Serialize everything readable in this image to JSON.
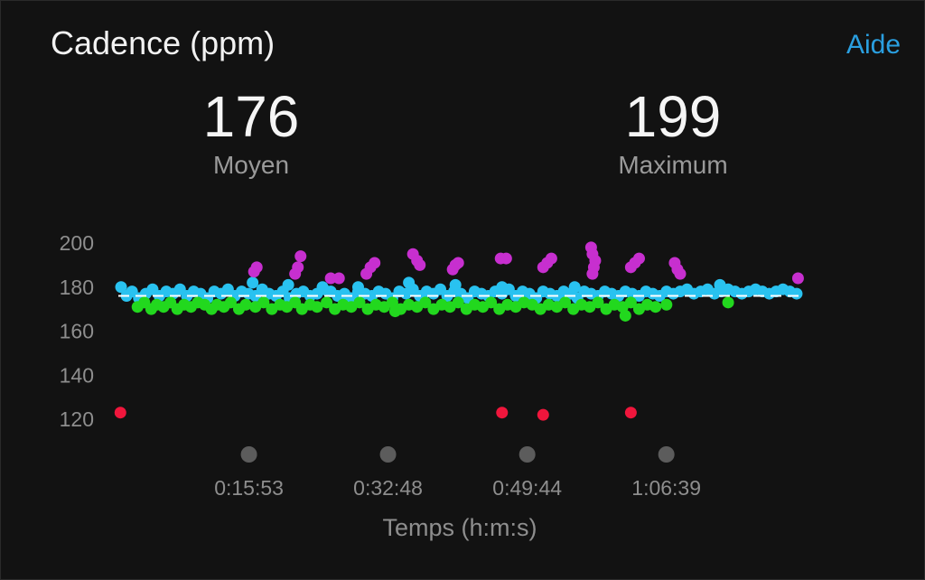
{
  "header": {
    "title": "Cadence (ppm)",
    "help_label": "Aide"
  },
  "stats": [
    {
      "value": "176",
      "label": "Moyen"
    },
    {
      "value": "199",
      "label": "Maximum"
    }
  ],
  "colors": {
    "background": "#121212",
    "accent_link": "#2a9fe0",
    "zone_blue": "#29c2f0",
    "zone_green": "#22d81e",
    "zone_purple": "#c72fcf",
    "zone_red": "#f0163c",
    "marker_gray": "#5c5c5c"
  },
  "chart_data": {
    "type": "scatter",
    "title": "Cadence (ppm)",
    "xlabel": "Temps (h:m:s)",
    "ylabel": "",
    "ylim": [
      120,
      200
    ],
    "xlim": [
      0,
      4990
    ],
    "yticks": [
      200,
      180,
      160,
      140,
      120
    ],
    "xticks": [
      {
        "value": 953,
        "label": "0:15:53"
      },
      {
        "value": 1968,
        "label": "0:32:48"
      },
      {
        "value": 2984,
        "label": "0:49:44"
      },
      {
        "value": 3999,
        "label": "1:06:39"
      }
    ],
    "average_line": 176,
    "grid": false,
    "legend": "none",
    "series": [
      {
        "color": "#29c2f0",
        "points": [
          [
            20,
            180
          ],
          [
            60,
            176
          ],
          [
            100,
            178
          ],
          [
            150,
            175
          ],
          [
            200,
            177
          ],
          [
            250,
            179
          ],
          [
            300,
            176
          ],
          [
            350,
            178
          ],
          [
            400,
            177
          ],
          [
            450,
            179
          ],
          [
            500,
            176
          ],
          [
            550,
            178
          ],
          [
            600,
            177
          ],
          [
            650,
            175
          ],
          [
            700,
            178
          ],
          [
            750,
            177
          ],
          [
            800,
            179
          ],
          [
            850,
            176
          ],
          [
            900,
            178
          ],
          [
            950,
            177
          ],
          [
            1000,
            176
          ],
          [
            1050,
            179
          ],
          [
            1100,
            177
          ],
          [
            1150,
            176
          ],
          [
            1200,
            178
          ],
          [
            1250,
            175
          ],
          [
            1300,
            177
          ],
          [
            1350,
            178
          ],
          [
            1400,
            176
          ],
          [
            1450,
            177
          ],
          [
            1500,
            179
          ],
          [
            1550,
            178
          ],
          [
            1600,
            176
          ],
          [
            1650,
            177
          ],
          [
            1700,
            175
          ],
          [
            1750,
            178
          ],
          [
            1800,
            177
          ],
          [
            1850,
            176
          ],
          [
            1900,
            178
          ],
          [
            1950,
            177
          ],
          [
            2000,
            175
          ],
          [
            2050,
            178
          ],
          [
            2100,
            177
          ],
          [
            2150,
            179
          ],
          [
            2200,
            176
          ],
          [
            2250,
            178
          ],
          [
            2300,
            177
          ],
          [
            2350,
            179
          ],
          [
            2400,
            176
          ],
          [
            2450,
            178
          ],
          [
            2500,
            177
          ],
          [
            2550,
            175
          ],
          [
            2600,
            178
          ],
          [
            2650,
            177
          ],
          [
            2700,
            176
          ],
          [
            2750,
            178
          ],
          [
            2800,
            177
          ],
          [
            2850,
            179
          ],
          [
            2900,
            176
          ],
          [
            2950,
            178
          ],
          [
            3000,
            177
          ],
          [
            3050,
            175
          ],
          [
            3100,
            178
          ],
          [
            3150,
            177
          ],
          [
            3200,
            176
          ],
          [
            3250,
            178
          ],
          [
            3300,
            177
          ],
          [
            3350,
            175
          ],
          [
            3400,
            178
          ],
          [
            3450,
            177
          ],
          [
            3500,
            176
          ],
          [
            3550,
            178
          ],
          [
            3600,
            177
          ],
          [
            3650,
            176
          ],
          [
            3700,
            178
          ],
          [
            3750,
            177
          ],
          [
            3800,
            176
          ],
          [
            3850,
            178
          ],
          [
            3900,
            177
          ],
          [
            3950,
            176
          ],
          [
            4000,
            178
          ],
          [
            4050,
            177
          ],
          [
            4100,
            178
          ],
          [
            4150,
            179
          ],
          [
            4200,
            177
          ],
          [
            4250,
            178
          ],
          [
            4300,
            179
          ],
          [
            4350,
            177
          ],
          [
            4400,
            178
          ],
          [
            4450,
            179
          ],
          [
            4500,
            178
          ],
          [
            4550,
            177
          ],
          [
            4600,
            178
          ],
          [
            4650,
            179
          ],
          [
            4700,
            178
          ],
          [
            4750,
            177
          ],
          [
            4800,
            178
          ],
          [
            4850,
            179
          ],
          [
            4900,
            178
          ],
          [
            4950,
            177
          ],
          [
            980,
            182
          ],
          [
            1240,
            181
          ],
          [
            1490,
            180
          ],
          [
            1750,
            180
          ],
          [
            2120,
            182
          ],
          [
            2460,
            181
          ],
          [
            2800,
            180
          ],
          [
            3330,
            180
          ],
          [
            4390,
            181
          ]
        ]
      },
      {
        "color": "#22d81e",
        "points": [
          [
            140,
            171
          ],
          [
            190,
            173
          ],
          [
            240,
            170
          ],
          [
            280,
            172
          ],
          [
            330,
            171
          ],
          [
            380,
            173
          ],
          [
            430,
            170
          ],
          [
            480,
            172
          ],
          [
            530,
            171
          ],
          [
            580,
            173
          ],
          [
            630,
            172
          ],
          [
            680,
            170
          ],
          [
            720,
            172
          ],
          [
            770,
            171
          ],
          [
            820,
            173
          ],
          [
            880,
            170
          ],
          [
            930,
            172
          ],
          [
            1000,
            171
          ],
          [
            1060,
            173
          ],
          [
            1120,
            170
          ],
          [
            1180,
            172
          ],
          [
            1230,
            171
          ],
          [
            1290,
            173
          ],
          [
            1340,
            170
          ],
          [
            1400,
            172
          ],
          [
            1450,
            171
          ],
          [
            1520,
            173
          ],
          [
            1580,
            170
          ],
          [
            1640,
            172
          ],
          [
            1700,
            171
          ],
          [
            1760,
            173
          ],
          [
            1820,
            170
          ],
          [
            1880,
            172
          ],
          [
            1940,
            171
          ],
          [
            2000,
            173
          ],
          [
            2060,
            170
          ],
          [
            2120,
            172
          ],
          [
            2180,
            171
          ],
          [
            2240,
            173
          ],
          [
            2300,
            170
          ],
          [
            2360,
            172
          ],
          [
            2420,
            171
          ],
          [
            2480,
            173
          ],
          [
            2540,
            170
          ],
          [
            2600,
            172
          ],
          [
            2660,
            171
          ],
          [
            2720,
            173
          ],
          [
            2780,
            170
          ],
          [
            2840,
            172
          ],
          [
            2900,
            171
          ],
          [
            2960,
            173
          ],
          [
            3020,
            172
          ],
          [
            3080,
            170
          ],
          [
            3140,
            172
          ],
          [
            3200,
            171
          ],
          [
            3260,
            173
          ],
          [
            3320,
            170
          ],
          [
            3380,
            172
          ],
          [
            3440,
            171
          ],
          [
            3500,
            173
          ],
          [
            3560,
            170
          ],
          [
            3620,
            172
          ],
          [
            3680,
            171
          ],
          [
            3740,
            173
          ],
          [
            3800,
            170
          ],
          [
            3860,
            172
          ],
          [
            3920,
            171
          ],
          [
            4000,
            172
          ],
          [
            4450,
            173
          ],
          [
            3700,
            167
          ],
          [
            2020,
            169
          ]
        ]
      },
      {
        "color": "#c72fcf",
        "points": [
          [
            990,
            187
          ],
          [
            1010,
            189
          ],
          [
            1290,
            186
          ],
          [
            1310,
            189
          ],
          [
            1330,
            194
          ],
          [
            1550,
            184
          ],
          [
            1610,
            184
          ],
          [
            1810,
            186
          ],
          [
            1840,
            189
          ],
          [
            1870,
            191
          ],
          [
            2150,
            195
          ],
          [
            2180,
            192
          ],
          [
            2200,
            190
          ],
          [
            2440,
            188
          ],
          [
            2460,
            190
          ],
          [
            2480,
            191
          ],
          [
            2790,
            193
          ],
          [
            2830,
            193
          ],
          [
            3100,
            189
          ],
          [
            3130,
            191
          ],
          [
            3160,
            193
          ],
          [
            3450,
            198
          ],
          [
            3460,
            195
          ],
          [
            3480,
            192
          ],
          [
            3470,
            189
          ],
          [
            3460,
            186
          ],
          [
            3740,
            189
          ],
          [
            3770,
            191
          ],
          [
            3800,
            193
          ],
          [
            4060,
            191
          ],
          [
            4080,
            188
          ],
          [
            4100,
            186
          ],
          [
            4960,
            184
          ]
        ]
      },
      {
        "color": "#f0163c",
        "points": [
          [
            15,
            123
          ],
          [
            2800,
            123
          ],
          [
            3100,
            122
          ],
          [
            3740,
            123
          ]
        ]
      }
    ]
  }
}
